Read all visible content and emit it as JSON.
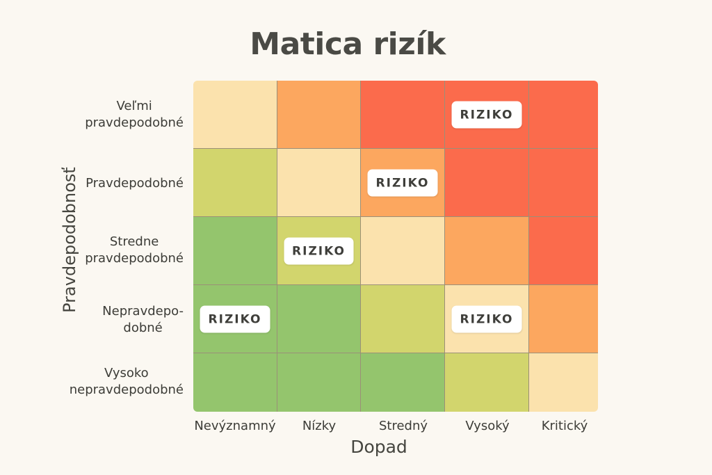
{
  "title": "Matica rizík",
  "y_axis_label": "Pravdepodobnosť",
  "x_axis_label": "Dopad",
  "row_labels": [
    "Veľmi\npravdepodobné",
    "Pravdepodobné",
    "Stredne\npravdepodobné",
    "Nepravdepo-\ndobné",
    "Vysoko\nnepravdepodobné"
  ],
  "column_labels": [
    "Nevýznamný",
    "Nízky",
    "Stredný",
    "Vysoký",
    "Kritický"
  ],
  "badge_text": "RIZIKO",
  "palette": {
    "cream": "#fbe2ad",
    "orange": "#fca75f",
    "red": "#fb6b4c",
    "yellow_green": "#d2d56d",
    "green": "#94c56d"
  },
  "cells": [
    [
      "cream",
      "orange",
      "red",
      "red",
      "red"
    ],
    [
      "yellow_green",
      "cream",
      "orange",
      "red",
      "red"
    ],
    [
      "green",
      "yellow_green",
      "cream",
      "orange",
      "red"
    ],
    [
      "green",
      "green",
      "yellow_green",
      "cream",
      "orange"
    ],
    [
      "green",
      "green",
      "green",
      "yellow_green",
      "cream"
    ]
  ],
  "risk_markers": [
    {
      "row": 0,
      "col": 3
    },
    {
      "row": 1,
      "col": 2
    },
    {
      "row": 2,
      "col": 1
    },
    {
      "row": 3,
      "col": 0
    },
    {
      "row": 3,
      "col": 3
    }
  ]
}
